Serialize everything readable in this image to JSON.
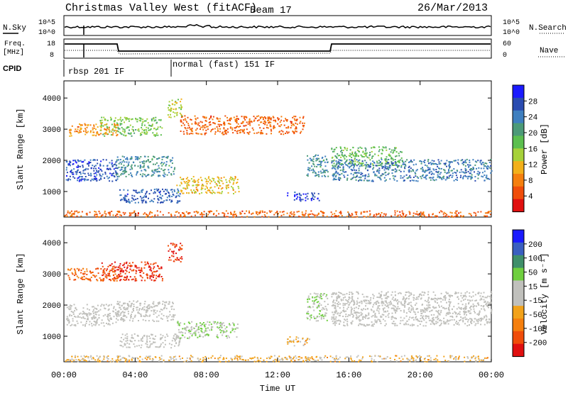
{
  "header": {
    "title": "Christmas Valley West (fitACF)",
    "beam": "Beam 17",
    "date": "26/Mar/2013"
  },
  "top_panels": {
    "nsky_label": "N.Sky",
    "nsearch_label": "N.Search",
    "nsky_ticks": [
      "10^5",
      "10^0"
    ],
    "nsky_right_ticks": [
      "10^5",
      "10^0"
    ],
    "freq_label_1": "Freq.",
    "freq_label_2": "[MHz]",
    "freq_ticks": [
      "18",
      "8"
    ],
    "nave_ticks": [
      "60",
      "0"
    ],
    "nave_label": "Nave",
    "cpid_label": "CPID",
    "cpid_1": "rbsp 201 IF",
    "cpid_2": "normal (fast) 151 IF"
  },
  "colors": {
    "power_scale": [
      "#1a1aff",
      "#2a4bb0",
      "#3f7fbf",
      "#4c9a78",
      "#5cbf4f",
      "#a6d13a",
      "#f2b01a",
      "#f57f0e",
      "#f04d0a",
      "#e01010"
    ],
    "velocity_scale": [
      "#1a1aff",
      "#3a5fc0",
      "#3f8f6a",
      "#6fcf3f",
      "#c0c0bc",
      "#c0c0bc",
      "#f2a21a",
      "#f57f0e",
      "#f04d0a",
      "#e01010"
    ]
  },
  "chart_data": [
    {
      "type": "heatmap",
      "title": "",
      "ylabel": "Slant Range [km]",
      "ylim": [
        180,
        4550
      ],
      "yticks": [
        "1000",
        "2000",
        "3000",
        "4000"
      ],
      "colorbar_label": "Power [dB]",
      "colorbar_ticks": [
        "28",
        "24",
        "20",
        "16",
        "12",
        "8",
        "4"
      ],
      "clim": [
        0,
        32
      ],
      "xlim": [
        0,
        24
      ],
      "regions": [
        {
          "t0": 0.1,
          "t1": 3.0,
          "r0": 1350,
          "r1": 2050,
          "v": 27
        },
        {
          "t0": 2.9,
          "t1": 6.2,
          "r0": 1500,
          "r1": 2150,
          "v": 22
        },
        {
          "t0": 3.1,
          "t1": 6.5,
          "r0": 650,
          "r1": 1100,
          "v": 26
        },
        {
          "t0": 6.3,
          "t1": 9.8,
          "r0": 950,
          "r1": 1500,
          "v": 12
        },
        {
          "t0": 2.0,
          "t1": 5.5,
          "r0": 2800,
          "r1": 3400,
          "v": 17
        },
        {
          "t0": 0.2,
          "t1": 3.0,
          "r0": 2800,
          "r1": 3200,
          "v": 9
        },
        {
          "t0": 6.5,
          "t1": 13.5,
          "r0": 2850,
          "r1": 3450,
          "v": 6
        },
        {
          "t0": 12.5,
          "t1": 14.3,
          "r0": 700,
          "r1": 1000,
          "v": 28
        },
        {
          "t0": 13.6,
          "t1": 14.8,
          "r0": 1500,
          "r1": 2200,
          "v": 22
        },
        {
          "t0": 15.0,
          "t1": 19.0,
          "r0": 1850,
          "r1": 2450,
          "v": 18
        },
        {
          "t0": 15.0,
          "t1": 24.0,
          "r0": 1350,
          "r1": 2050,
          "v": 24
        },
        {
          "t0": 5.8,
          "t1": 6.6,
          "r0": 3400,
          "r1": 4000,
          "v": 14
        },
        {
          "t0": 0.0,
          "t1": 24.0,
          "r0": 200,
          "r1": 400,
          "v": 6
        }
      ]
    },
    {
      "type": "heatmap",
      "title": "",
      "xlabel": "Time UT",
      "ylabel": "Slant Range [km]",
      "ylim": [
        180,
        4550
      ],
      "yticks": [
        "1000",
        "2000",
        "3000",
        "4000"
      ],
      "xticks": [
        "00:00",
        "04:00",
        "08:00",
        "12:00",
        "16:00",
        "20:00",
        "00:00"
      ],
      "colorbar_label": "Velocity [m s⁻¹]",
      "colorbar_ticks": [
        "200",
        "100",
        "50",
        "15",
        "-15",
        "-50",
        "-100",
        "-200"
      ],
      "clim": [
        -250,
        250
      ],
      "xlim": [
        0,
        24
      ],
      "regions": [
        {
          "t0": 0.1,
          "t1": 3.0,
          "r0": 1350,
          "r1": 2050,
          "v": 0
        },
        {
          "t0": 2.9,
          "t1": 6.2,
          "r0": 1500,
          "r1": 2150,
          "v": 0
        },
        {
          "t0": 3.1,
          "t1": 6.5,
          "r0": 650,
          "r1": 1100,
          "v": 0
        },
        {
          "t0": 6.3,
          "t1": 9.8,
          "r0": 950,
          "r1": 1500,
          "v": 40
        },
        {
          "t0": 2.0,
          "t1": 5.5,
          "r0": 2800,
          "r1": 3400,
          "v": -200
        },
        {
          "t0": 0.2,
          "t1": 3.0,
          "r0": 2800,
          "r1": 3200,
          "v": -150
        },
        {
          "t0": 12.5,
          "t1": 13.8,
          "r0": 700,
          "r1": 1000,
          "v": -60
        },
        {
          "t0": 13.6,
          "t1": 14.8,
          "r0": 1500,
          "r1": 2400,
          "v": 40
        },
        {
          "t0": 15.0,
          "t1": 24.0,
          "r0": 1350,
          "r1": 2450,
          "v": 0
        },
        {
          "t0": 5.8,
          "t1": 6.6,
          "r0": 3400,
          "r1": 4000,
          "v": -200
        },
        {
          "t0": 0.0,
          "t1": 24.0,
          "r0": 200,
          "r1": 400,
          "v": -60
        }
      ]
    }
  ]
}
